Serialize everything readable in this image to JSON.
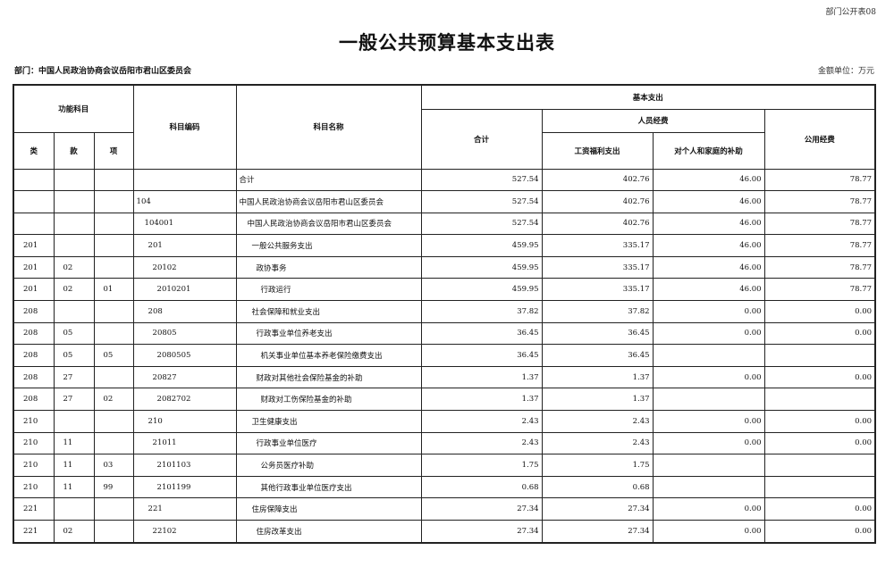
{
  "form_number": "部门公开表08",
  "title": "一般公共预算基本支出表",
  "department": "部门：中国人民政治协商会议岳阳市君山区委员会",
  "unit": "金额单位：万元",
  "headers": {
    "func_subject": "功能科目",
    "lei": "类",
    "kuan": "款",
    "xiang": "项",
    "code": "科目编码",
    "name": "科目名称",
    "basic_expense": "基本支出",
    "total": "合计",
    "personnel": "人员经费",
    "salary": "工资福利支出",
    "subsidy": "对个人和家庭的补助",
    "public": "公用经费"
  },
  "rows": [
    {
      "lei": "",
      "kuan": "",
      "xiang": "",
      "code": "",
      "name": "合计",
      "level": 0,
      "total": "527.54",
      "salary": "402.76",
      "subsidy": "46.00",
      "public": "78.77"
    },
    {
      "lei": "",
      "kuan": "",
      "xiang": "",
      "code": "104",
      "name": "中国人民政治协商会议岳阳市君山区委员会",
      "level": 1,
      "total": "527.54",
      "salary": "402.76",
      "subsidy": "46.00",
      "public": "78.77"
    },
    {
      "lei": "",
      "kuan": "",
      "xiang": "",
      "code": "104001",
      "name": "中国人民政治协商会议岳阳市君山区委员会",
      "level": 2,
      "total": "527.54",
      "salary": "402.76",
      "subsidy": "46.00",
      "public": "78.77"
    },
    {
      "lei": "201",
      "kuan": "",
      "xiang": "",
      "code": "201",
      "name": "一般公共服务支出",
      "level": 3,
      "total": "459.95",
      "salary": "335.17",
      "subsidy": "46.00",
      "public": "78.77"
    },
    {
      "lei": "201",
      "kuan": "02",
      "xiang": "",
      "code": "20102",
      "name": "政协事务",
      "level": 4,
      "total": "459.95",
      "salary": "335.17",
      "subsidy": "46.00",
      "public": "78.77"
    },
    {
      "lei": "201",
      "kuan": "02",
      "xiang": "01",
      "code": "2010201",
      "name": "行政运行",
      "level": 5,
      "total": "459.95",
      "salary": "335.17",
      "subsidy": "46.00",
      "public": "78.77"
    },
    {
      "lei": "208",
      "kuan": "",
      "xiang": "",
      "code": "208",
      "name": "社会保障和就业支出",
      "level": 3,
      "total": "37.82",
      "salary": "37.82",
      "subsidy": "0.00",
      "public": "0.00"
    },
    {
      "lei": "208",
      "kuan": "05",
      "xiang": "",
      "code": "20805",
      "name": "行政事业单位养老支出",
      "level": 4,
      "total": "36.45",
      "salary": "36.45",
      "subsidy": "0.00",
      "public": "0.00"
    },
    {
      "lei": "208",
      "kuan": "05",
      "xiang": "05",
      "code": "2080505",
      "name": "机关事业单位基本养老保险缴费支出",
      "level": 5,
      "total": "36.45",
      "salary": "36.45",
      "subsidy": "",
      "public": ""
    },
    {
      "lei": "208",
      "kuan": "27",
      "xiang": "",
      "code": "20827",
      "name": "财政对其他社会保险基金的补助",
      "level": 4,
      "total": "1.37",
      "salary": "1.37",
      "subsidy": "0.00",
      "public": "0.00"
    },
    {
      "lei": "208",
      "kuan": "27",
      "xiang": "02",
      "code": "2082702",
      "name": "财政对工伤保险基金的补助",
      "level": 5,
      "total": "1.37",
      "salary": "1.37",
      "subsidy": "",
      "public": ""
    },
    {
      "lei": "210",
      "kuan": "",
      "xiang": "",
      "code": "210",
      "name": "卫生健康支出",
      "level": 3,
      "total": "2.43",
      "salary": "2.43",
      "subsidy": "0.00",
      "public": "0.00"
    },
    {
      "lei": "210",
      "kuan": "11",
      "xiang": "",
      "code": "21011",
      "name": "行政事业单位医疗",
      "level": 4,
      "total": "2.43",
      "salary": "2.43",
      "subsidy": "0.00",
      "public": "0.00"
    },
    {
      "lei": "210",
      "kuan": "11",
      "xiang": "03",
      "code": "2101103",
      "name": "公务员医疗补助",
      "level": 5,
      "total": "1.75",
      "salary": "1.75",
      "subsidy": "",
      "public": ""
    },
    {
      "lei": "210",
      "kuan": "11",
      "xiang": "99",
      "code": "2101199",
      "name": "其他行政事业单位医疗支出",
      "level": 5,
      "total": "0.68",
      "salary": "0.68",
      "subsidy": "",
      "public": ""
    },
    {
      "lei": "221",
      "kuan": "",
      "xiang": "",
      "code": "221",
      "name": "住房保障支出",
      "level": 3,
      "total": "27.34",
      "salary": "27.34",
      "subsidy": "0.00",
      "public": "0.00"
    },
    {
      "lei": "221",
      "kuan": "02",
      "xiang": "",
      "code": "22102",
      "name": "住房改革支出",
      "level": 4,
      "total": "27.34",
      "salary": "27.34",
      "subsidy": "0.00",
      "public": "0.00"
    }
  ]
}
